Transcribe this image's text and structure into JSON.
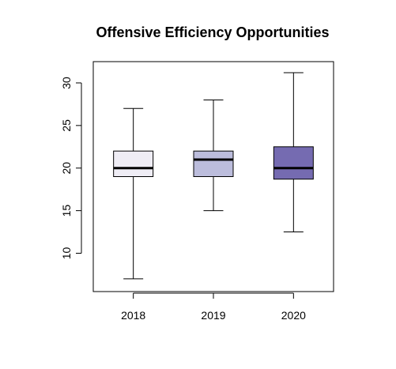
{
  "chart_data": {
    "type": "boxplot",
    "title": "Offensive Efficiency Opportunities",
    "xlabel": "",
    "ylabel": "",
    "categories": [
      "2018",
      "2019",
      "2020"
    ],
    "ylim": [
      5.5,
      32.5
    ],
    "y_ticks": [
      10,
      15,
      20,
      25,
      30
    ],
    "grid": false,
    "boxes": [
      {
        "category": "2018",
        "min": 7,
        "q1": 19,
        "median": 20,
        "q3": 22,
        "max": 27,
        "fill": "#efedf5"
      },
      {
        "category": "2019",
        "min": 15,
        "q1": 19,
        "median": 21,
        "q3": 22,
        "max": 28,
        "fill": "#bcbddc"
      },
      {
        "category": "2020",
        "min": 12.5,
        "q1": 18.7,
        "median": 20,
        "q3": 22.5,
        "max": 31.2,
        "fill": "#756bb1"
      }
    ]
  }
}
